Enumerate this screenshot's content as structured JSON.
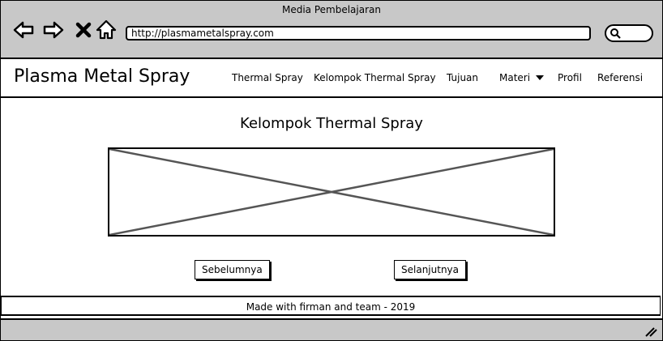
{
  "window": {
    "title": "Media Pembelajaran"
  },
  "browser": {
    "url": "http://plasmametalspray.com",
    "icons": [
      "back-arrow-icon",
      "forward-arrow-icon",
      "close-x-icon",
      "home-icon",
      "search-icon"
    ]
  },
  "navbar": {
    "brand": "Plasma Metal Spray",
    "menu": [
      {
        "label": "Thermal Spray"
      },
      {
        "label": "Kelompok Thermal Spray"
      },
      {
        "label": "Tujuan"
      },
      {
        "label": "Materi"
      },
      {
        "label": "Profil"
      },
      {
        "label": "Referensi"
      }
    ]
  },
  "main": {
    "title": "Kelompok Thermal Spray",
    "prev_label": "Sebelumnya",
    "next_label": "Selanjutnya"
  },
  "footer": {
    "text": "Made with firman and team - 2019"
  },
  "colors": {
    "chrome": "#c8c8c8",
    "line": "#000000",
    "placeholder_cross": "#555555"
  }
}
